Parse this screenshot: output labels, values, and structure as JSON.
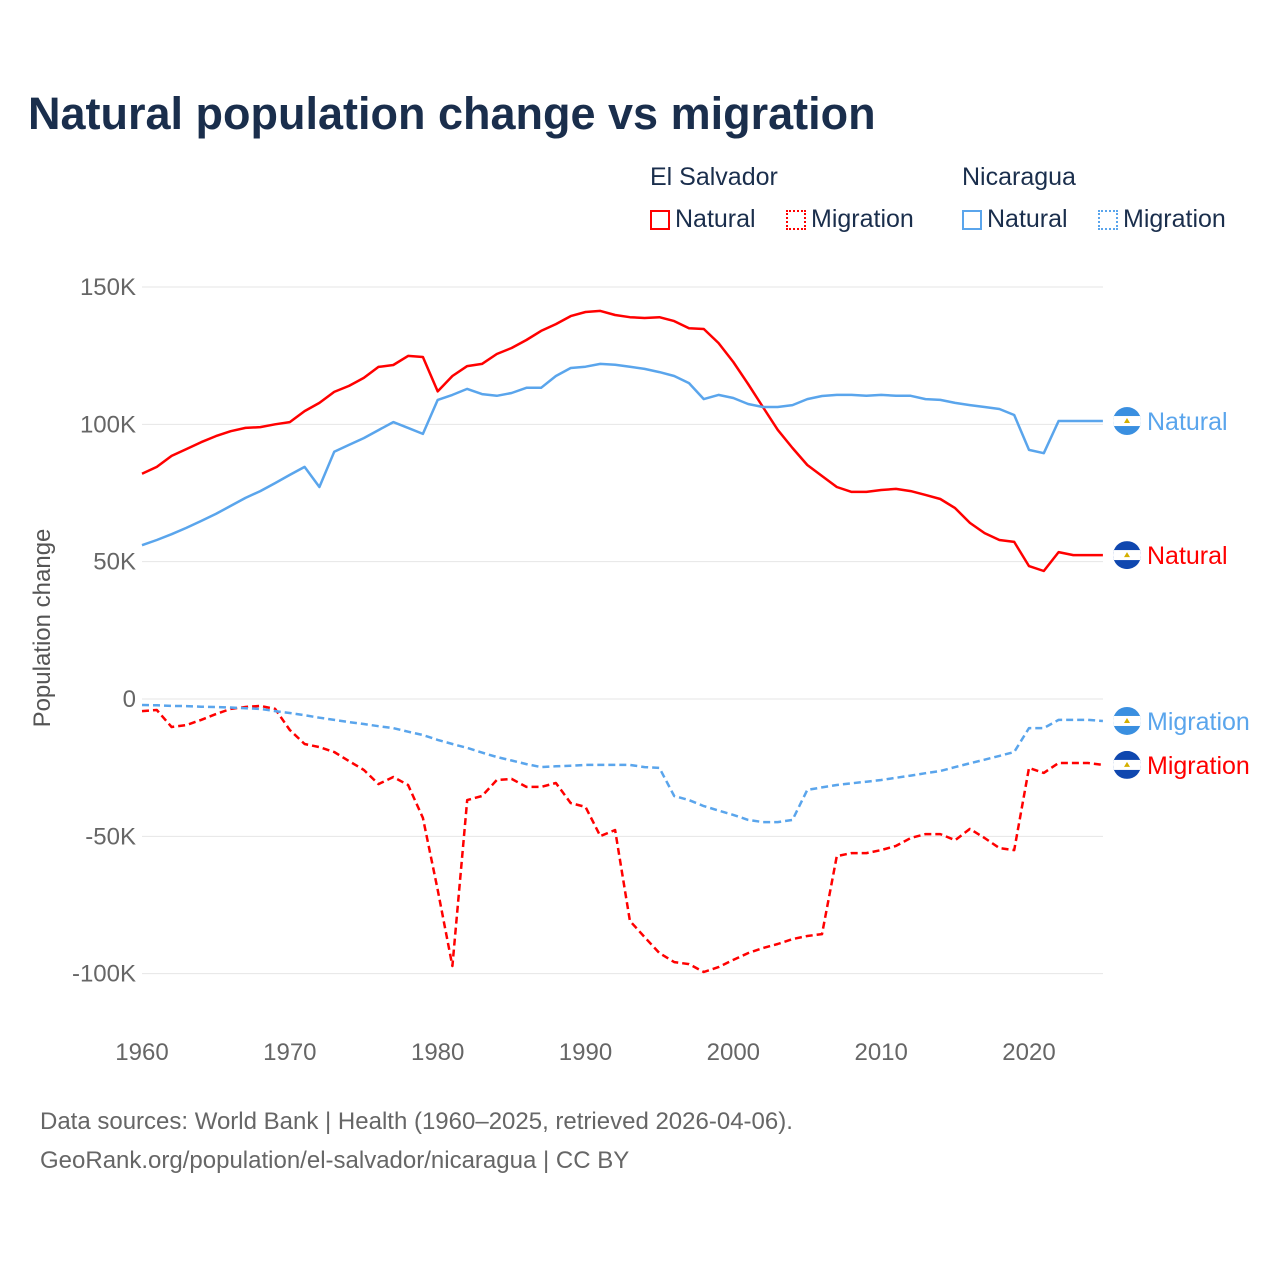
{
  "chart_data": {
    "type": "line",
    "title": "Natural population change vs migration",
    "ylabel": "Population change",
    "xlabel": "",
    "xlim": [
      1960,
      2025
    ],
    "ylim": [
      -115000,
      150000
    ],
    "x_ticks": [
      1960,
      1970,
      1980,
      1990,
      2000,
      2010,
      2020
    ],
    "x_tick_labels": [
      "1960",
      "1970",
      "1980",
      "1990",
      "2000",
      "2010",
      "2020"
    ],
    "y_ticks": [
      150000,
      100000,
      50000,
      0,
      -50000,
      -100000
    ],
    "y_tick_labels": [
      "150K",
      "100K",
      "50K",
      "0",
      "-50K",
      "-100K"
    ],
    "grid": true,
    "legend_placement": "top-right",
    "legend": {
      "groups": [
        {
          "name": "El Salvador",
          "items": [
            "Natural",
            "Migration"
          ]
        },
        {
          "name": "Nicaragua",
          "items": [
            "Natural",
            "Migration"
          ]
        }
      ]
    },
    "x": [
      1960,
      1961,
      1962,
      1963,
      1964,
      1965,
      1966,
      1967,
      1968,
      1969,
      1970,
      1971,
      1972,
      1973,
      1974,
      1975,
      1976,
      1977,
      1978,
      1979,
      1980,
      1981,
      1982,
      1983,
      1984,
      1985,
      1986,
      1987,
      1988,
      1989,
      1990,
      1991,
      1992,
      1993,
      1994,
      1995,
      1996,
      1997,
      1998,
      1999,
      2000,
      2001,
      2002,
      2003,
      2004,
      2005,
      2006,
      2007,
      2008,
      2009,
      2010,
      2011,
      2012,
      2013,
      2014,
      2015,
      2016,
      2017,
      2018,
      2019,
      2020,
      2021,
      2022,
      2023,
      2024,
      2025
    ],
    "series": [
      {
        "name": "El Salvador Natural",
        "country": "El Salvador",
        "kind": "Natural",
        "color": "#ff0000",
        "dash": false,
        "values": [
          82000,
          84500,
          88500,
          91000,
          93500,
          95700,
          97500,
          98700,
          99000,
          100000,
          100800,
          104800,
          107800,
          111800,
          114000,
          116900,
          120900,
          121600,
          124900,
          124500,
          112000,
          117600,
          121200,
          122000,
          125600,
          127800,
          130700,
          134000,
          136500,
          139400,
          140900,
          141300,
          139800,
          139000,
          138700,
          139000,
          137600,
          135000,
          134700,
          129600,
          122700,
          114700,
          106300,
          98000,
          91400,
          85200,
          81200,
          77200,
          75400,
          75400,
          76100,
          76500,
          75700,
          74300,
          72800,
          69500,
          64100,
          60400,
          57900,
          57200,
          48400,
          46600,
          53500,
          52400,
          52400,
          52400
        ]
      },
      {
        "name": "El Salvador Migration",
        "country": "El Salvador",
        "kind": "Migration",
        "color": "#ff0000",
        "dash": true,
        "values": [
          -4400,
          -4000,
          -10200,
          -9500,
          -7600,
          -5500,
          -3600,
          -2900,
          -2500,
          -3600,
          -11300,
          -16400,
          -17500,
          -19300,
          -22600,
          -25800,
          -31000,
          -28400,
          -31300,
          -43300,
          -69500,
          -97200,
          -36800,
          -35300,
          -29500,
          -29100,
          -32000,
          -32000,
          -30600,
          -37900,
          -39300,
          -49900,
          -47700,
          -80800,
          -86700,
          -92500,
          -95800,
          -96500,
          -99400,
          -97600,
          -95000,
          -92500,
          -90700,
          -89200,
          -87400,
          -86300,
          -85600,
          -57200,
          -56100,
          -56100,
          -55000,
          -53500,
          -50600,
          -49200,
          -49200,
          -51400,
          -47300,
          -50600,
          -54300,
          -55000,
          -25100,
          -26900,
          -23300,
          -23300,
          -23300,
          -24000
        ]
      },
      {
        "name": "Nicaragua Natural",
        "country": "Nicaragua",
        "kind": "Natural",
        "color": "#5aa5ec",
        "dash": false,
        "values": [
          56000,
          57900,
          60000,
          62300,
          64800,
          67400,
          70300,
          73200,
          75700,
          78600,
          81600,
          84500,
          77200,
          90000,
          92500,
          95000,
          97900,
          100800,
          98700,
          96500,
          108900,
          110700,
          112900,
          111000,
          110400,
          111400,
          113300,
          113300,
          117600,
          120500,
          121000,
          122000,
          121700,
          121000,
          120200,
          119000,
          117600,
          115000,
          109200,
          110700,
          109600,
          107400,
          106300,
          106300,
          107000,
          109200,
          110300,
          110700,
          110700,
          110400,
          110700,
          110400,
          110400,
          109200,
          108900,
          107800,
          107000,
          106300,
          105600,
          103400,
          90700,
          89500,
          101200,
          101200,
          101200,
          101200
        ]
      },
      {
        "name": "Nicaragua Migration",
        "country": "Nicaragua",
        "kind": "Migration",
        "color": "#5aa5ec",
        "dash": true,
        "values": [
          -2200,
          -2300,
          -2500,
          -2600,
          -2800,
          -2900,
          -3100,
          -3400,
          -3600,
          -4400,
          -5100,
          -5900,
          -6800,
          -7600,
          -8400,
          -9100,
          -9900,
          -10600,
          -11900,
          -13100,
          -14900,
          -16400,
          -17800,
          -19500,
          -21100,
          -22400,
          -23700,
          -24800,
          -24500,
          -24300,
          -24000,
          -24000,
          -24000,
          -24000,
          -24800,
          -25100,
          -35300,
          -36800,
          -39000,
          -40600,
          -42200,
          -44000,
          -44800,
          -44800,
          -44000,
          -33100,
          -32200,
          -31300,
          -30700,
          -30100,
          -29500,
          -28700,
          -27900,
          -27000,
          -26200,
          -24800,
          -23400,
          -22100,
          -20700,
          -19300,
          -10600,
          -10600,
          -7600,
          -7600,
          -7600,
          -8000
        ]
      }
    ],
    "end_labels": [
      {
        "series": "Nicaragua Natural",
        "text": "Natural"
      },
      {
        "series": "El Salvador Natural",
        "text": "Natural"
      },
      {
        "series": "Nicaragua Migration",
        "text": "Migration"
      },
      {
        "series": "El Salvador Migration",
        "text": "Migration"
      }
    ]
  },
  "footer": {
    "line1": "Data sources: World Bank | Health (1960–2025, retrieved 2026-04-06).",
    "line2": "GeoRank.org/population/el-salvador/nicaragua | CC BY"
  }
}
